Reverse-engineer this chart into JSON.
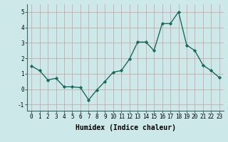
{
  "x": [
    0,
    1,
    2,
    3,
    4,
    5,
    6,
    7,
    8,
    9,
    10,
    11,
    12,
    13,
    14,
    15,
    16,
    17,
    18,
    19,
    20,
    21,
    22,
    23
  ],
  "y": [
    1.5,
    1.2,
    0.6,
    0.7,
    0.15,
    0.15,
    0.1,
    -0.7,
    -0.05,
    0.5,
    1.1,
    1.2,
    1.95,
    3.05,
    3.05,
    2.5,
    4.25,
    4.25,
    5.0,
    2.85,
    2.5,
    1.55,
    1.2,
    0.75
  ],
  "line_color": "#1a6b5a",
  "marker": "D",
  "marker_size": 2.2,
  "linewidth": 1.0,
  "xlabel": "Humidex (Indice chaleur)",
  "xlabel_fontsize": 7,
  "xlabel_fontweight": "bold",
  "ylim": [
    -1.4,
    5.5
  ],
  "xlim": [
    -0.5,
    23.5
  ],
  "yticks": [
    -1,
    0,
    1,
    2,
    3,
    4,
    5
  ],
  "xticks": [
    0,
    1,
    2,
    3,
    4,
    5,
    6,
    7,
    8,
    9,
    10,
    11,
    12,
    13,
    14,
    15,
    16,
    17,
    18,
    19,
    20,
    21,
    22,
    23
  ],
  "tick_fontsize": 5.5,
  "bg_color": "#cce8e8",
  "grid_color": "#c8a0a0",
  "axes_bg": "#cce8e8"
}
